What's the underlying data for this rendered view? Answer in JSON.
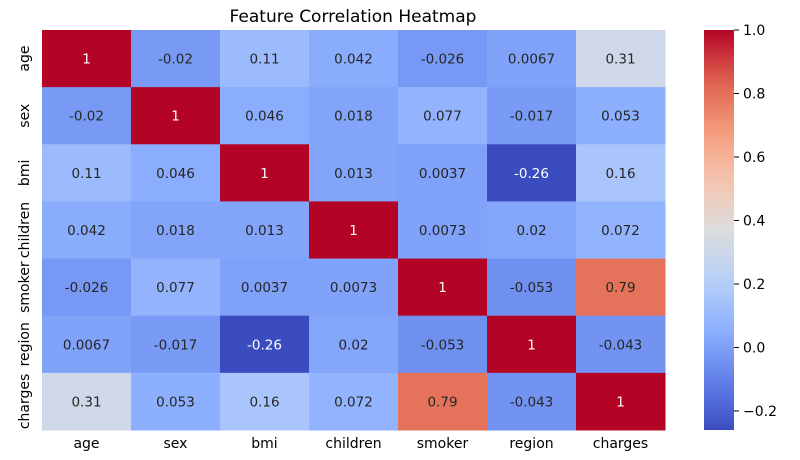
{
  "chart_data": {
    "type": "heatmap",
    "title": "Feature Correlation Heatmap",
    "xlabel": "",
    "ylabel": "",
    "x_categories": [
      "age",
      "sex",
      "bmi",
      "children",
      "smoker",
      "region",
      "charges"
    ],
    "y_categories": [
      "age",
      "sex",
      "bmi",
      "children",
      "smoker",
      "region",
      "charges"
    ],
    "values": [
      [
        1,
        -0.02,
        0.11,
        0.042,
        -0.026,
        0.0067,
        0.31
      ],
      [
        -0.02,
        1,
        0.046,
        0.018,
        0.077,
        -0.017,
        0.053
      ],
      [
        0.11,
        0.046,
        1,
        0.013,
        0.0037,
        -0.26,
        0.16
      ],
      [
        0.042,
        0.018,
        0.013,
        1,
        0.0073,
        0.02,
        0.072
      ],
      [
        -0.026,
        0.077,
        0.0037,
        0.0073,
        1,
        -0.053,
        0.79
      ],
      [
        0.0067,
        -0.017,
        -0.26,
        0.02,
        -0.053,
        1,
        -0.043
      ],
      [
        0.31,
        0.053,
        0.16,
        0.072,
        0.79,
        -0.043,
        1
      ]
    ],
    "value_labels": [
      [
        "1",
        "-0.02",
        "0.11",
        "0.042",
        "-0.026",
        "0.0067",
        "0.31"
      ],
      [
        "-0.02",
        "1",
        "0.046",
        "0.018",
        "0.077",
        "-0.017",
        "0.053"
      ],
      [
        "0.11",
        "0.046",
        "1",
        "0.013",
        "0.0037",
        "-0.26",
        "0.16"
      ],
      [
        "0.042",
        "0.018",
        "0.013",
        "1",
        "0.0073",
        "0.02",
        "0.072"
      ],
      [
        "-0.026",
        "0.077",
        "0.0037",
        "0.0073",
        "1",
        "-0.053",
        "0.79"
      ],
      [
        "0.0067",
        "-0.017",
        "-0.26",
        "0.02",
        "-0.053",
        "1",
        "-0.043"
      ],
      [
        "0.31",
        "0.053",
        "0.16",
        "0.072",
        "0.79",
        "-0.043",
        "1"
      ]
    ],
    "colormap": "coolwarm",
    "vrange": [
      -0.26,
      1.0
    ],
    "colorbar_ticks": [
      1.0,
      0.8,
      0.6,
      0.4,
      0.2,
      0.0,
      -0.2
    ],
    "colorbar_tick_labels": [
      "1.0",
      "0.8",
      "0.6",
      "0.4",
      "0.2",
      "0.0",
      "−0.2"
    ],
    "colorbar_position": "right",
    "grid": false
  }
}
